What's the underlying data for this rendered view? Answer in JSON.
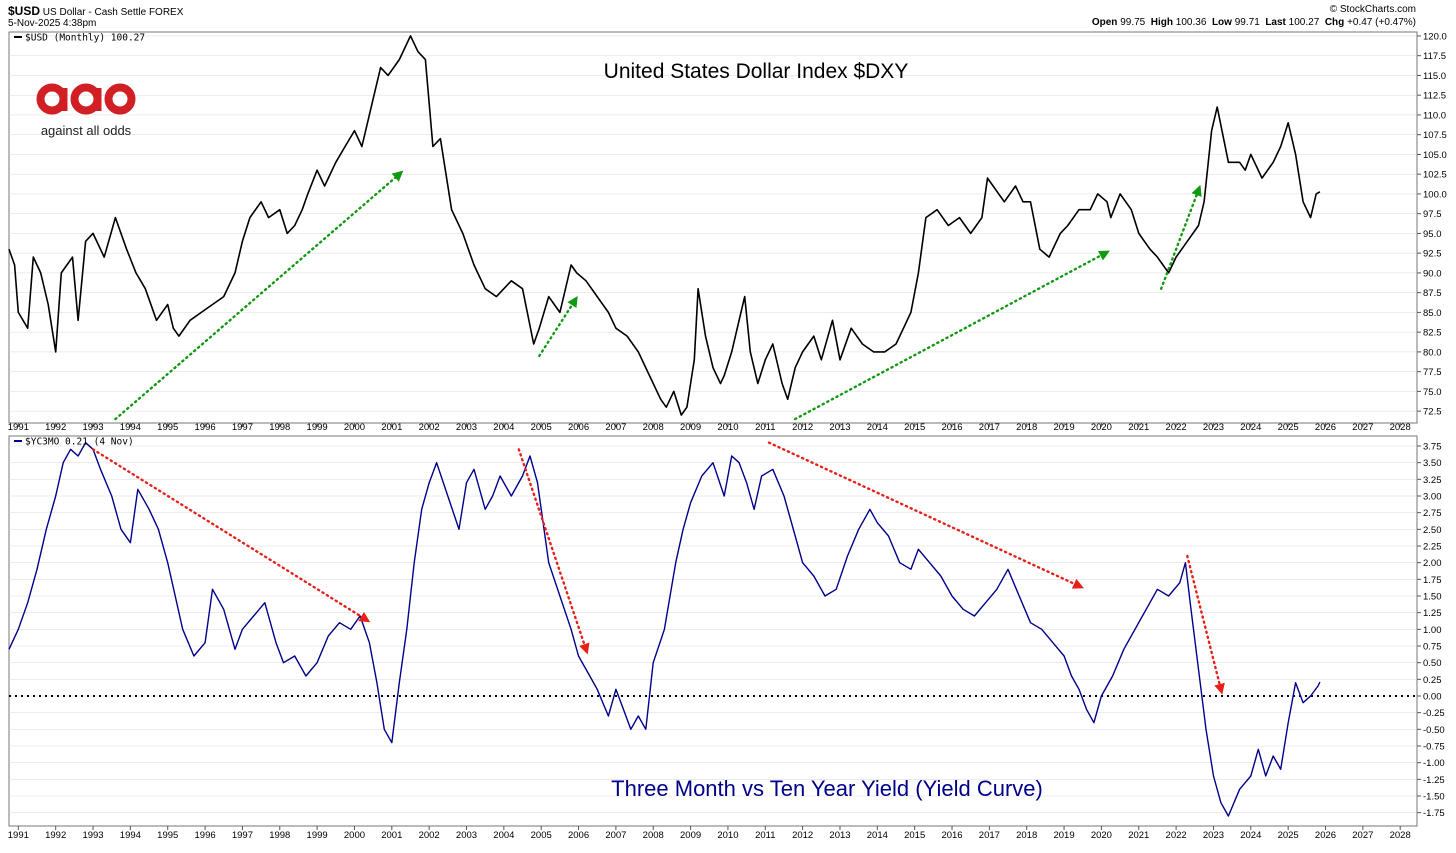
{
  "header": {
    "symbol": "$USD",
    "name": "US Dollar - Cash Settle",
    "exchange": "FOREX",
    "date": "5-Nov-2025 4:38pm",
    "source": "© StockCharts.com",
    "ohlc": [
      {
        "label": "Open",
        "value": "99.75"
      },
      {
        "label": "High",
        "value": "100.36"
      },
      {
        "label": "Low",
        "value": "99.71"
      },
      {
        "label": "Last",
        "value": "100.27"
      },
      {
        "label": "Chg",
        "value": "+0.47 (+0.47%)"
      }
    ]
  },
  "logo": {
    "mark": "aao",
    "tagline": "against all odds"
  },
  "colors": {
    "usd": "#000000",
    "yield": "#00008b",
    "up_arrow": "#119911",
    "down_arrow": "#e8201a",
    "logo": "#d11f26",
    "grid": "#d9d9d9"
  },
  "chart_data": [
    {
      "type": "line",
      "legend": "$USD (Monthly) 100.27",
      "title": "United States Dollar Index $DXY",
      "ylim": [
        71,
        120.5
      ],
      "yticks": [
        "72.5",
        "75.0",
        "77.5",
        "80.0",
        "82.5",
        "85.0",
        "87.5",
        "90.0",
        "92.5",
        "95.0",
        "97.5",
        "100.0",
        "102.5",
        "105.0",
        "107.5",
        "110.0",
        "112.5",
        "115.0",
        "117.5",
        "120.0"
      ],
      "xlim": [
        1990.75,
        2028.45
      ],
      "xticks": [
        "1991",
        "1992",
        "1993",
        "1994",
        "1995",
        "1996",
        "1997",
        "1998",
        "1999",
        "2000",
        "2001",
        "2002",
        "2003",
        "2004",
        "2005",
        "2006",
        "2007",
        "2008",
        "2009",
        "2010",
        "2011",
        "2012",
        "2013",
        "2014",
        "2015",
        "2016",
        "2017",
        "2018",
        "2019",
        "2020",
        "2021",
        "2022",
        "2023",
        "2024",
        "2025",
        "2026",
        "2027",
        "2028"
      ],
      "x": [
        1990.75,
        1990.9,
        1991.0,
        1991.25,
        1991.4,
        1991.6,
        1991.8,
        1992.0,
        1992.15,
        1992.45,
        1992.6,
        1992.8,
        1993.0,
        1993.3,
        1993.6,
        1993.9,
        1994.15,
        1994.4,
        1994.7,
        1995.0,
        1995.15,
        1995.3,
        1995.6,
        1995.9,
        1996.2,
        1996.5,
        1996.8,
        1997.0,
        1997.2,
        1997.5,
        1997.7,
        1998.0,
        1998.2,
        1998.4,
        1998.6,
        1998.75,
        1999.0,
        1999.2,
        1999.5,
        1999.75,
        2000.0,
        2000.2,
        2000.5,
        2000.7,
        2000.9,
        2001.2,
        2001.5,
        2001.7,
        2001.9,
        2002.1,
        2002.3,
        2002.6,
        2002.9,
        2003.2,
        2003.5,
        2003.8,
        2004.0,
        2004.2,
        2004.5,
        2004.8,
        2004.95,
        2005.2,
        2005.5,
        2005.8,
        2005.95,
        2006.2,
        2006.5,
        2006.8,
        2007.0,
        2007.3,
        2007.6,
        2007.9,
        2008.2,
        2008.35,
        2008.55,
        2008.75,
        2008.9,
        2009.1,
        2009.2,
        2009.4,
        2009.6,
        2009.8,
        2009.9,
        2010.1,
        2010.3,
        2010.45,
        2010.6,
        2010.8,
        2011.0,
        2011.2,
        2011.45,
        2011.6,
        2011.8,
        2012.0,
        2012.3,
        2012.5,
        2012.8,
        2013.0,
        2013.3,
        2013.6,
        2013.9,
        2014.2,
        2014.5,
        2014.7,
        2014.9,
        2015.1,
        2015.3,
        2015.6,
        2015.9,
        2016.2,
        2016.5,
        2016.8,
        2016.95,
        2017.1,
        2017.4,
        2017.7,
        2017.9,
        2018.1,
        2018.35,
        2018.6,
        2018.9,
        2019.1,
        2019.4,
        2019.7,
        2019.9,
        2020.15,
        2020.25,
        2020.5,
        2020.8,
        2021.0,
        2021.3,
        2021.5,
        2021.8,
        2022.0,
        2022.3,
        2022.6,
        2022.75,
        2022.95,
        2023.1,
        2023.4,
        2023.7,
        2023.85,
        2024.0,
        2024.3,
        2024.6,
        2024.8,
        2025.0,
        2025.2,
        2025.4,
        2025.6,
        2025.75,
        2025.85
      ],
      "values": [
        93,
        91,
        85,
        83,
        92,
        90,
        86,
        80,
        90,
        92,
        84,
        94,
        95,
        92,
        97,
        93,
        90,
        88,
        84,
        86,
        83,
        82,
        84,
        85,
        86,
        87,
        90,
        94,
        97,
        99,
        97,
        98,
        95,
        96,
        98,
        100,
        103,
        101,
        104,
        106,
        108,
        106,
        112,
        116,
        115,
        117,
        120,
        118,
        117,
        106,
        107,
        98,
        95,
        91,
        88,
        87,
        88,
        89,
        88,
        81,
        83,
        87,
        85,
        91,
        90,
        89,
        87,
        85,
        83,
        82,
        80,
        77,
        74,
        73,
        75,
        72,
        73,
        79,
        88,
        82,
        78,
        76,
        77,
        80,
        84,
        87,
        80,
        76,
        79,
        81,
        76,
        74,
        78,
        80,
        82,
        79,
        84,
        79,
        83,
        81,
        80,
        80,
        81,
        83,
        85,
        90,
        97,
        98,
        96,
        97,
        95,
        97,
        102,
        101,
        99,
        101,
        99,
        99,
        93,
        92,
        95,
        96,
        98,
        98,
        100,
        99,
        97,
        100,
        98,
        95,
        93,
        92,
        90,
        92,
        94,
        96,
        99,
        108,
        111,
        104,
        104,
        103,
        105,
        102,
        104,
        106,
        109,
        105,
        99,
        97,
        100,
        100.27
      ]
    },
    {
      "type": "line",
      "legend": "$YC3MO 0.21 (4 Nov)",
      "title": "Three Month vs Ten Year Yield (Yield Curve)",
      "ylim": [
        -1.95,
        3.9
      ],
      "yticks": [
        "3.75",
        "3.50",
        "3.25",
        "3.00",
        "2.75",
        "2.50",
        "2.25",
        "2.00",
        "1.75",
        "1.50",
        "1.25",
        "1.00",
        "0.75",
        "0.50",
        "0.25",
        "0.00",
        "-0.25",
        "-0.50",
        "-0.75",
        "-1.00",
        "-1.25",
        "-1.50",
        "-1.75"
      ],
      "xlim": [
        1990.75,
        2028.45
      ],
      "xticks": [
        "1991",
        "1992",
        "1993",
        "1994",
        "1995",
        "1996",
        "1997",
        "1998",
        "1999",
        "2000",
        "2001",
        "2002",
        "2003",
        "2004",
        "2005",
        "2006",
        "2007",
        "2008",
        "2009",
        "2010",
        "2011",
        "2012",
        "2013",
        "2014",
        "2015",
        "2016",
        "2017",
        "2018",
        "2019",
        "2020",
        "2021",
        "2022",
        "2023",
        "2024",
        "2025",
        "2026",
        "2027",
        "2028"
      ],
      "x": [
        1990.75,
        1991.0,
        1991.25,
        1991.5,
        1991.75,
        1992.0,
        1992.2,
        1992.4,
        1992.6,
        1992.8,
        1993.0,
        1993.2,
        1993.5,
        1993.75,
        1994.0,
        1994.2,
        1994.5,
        1994.75,
        1995.0,
        1995.2,
        1995.4,
        1995.7,
        1996.0,
        1996.2,
        1996.5,
        1996.8,
        1997.0,
        1997.3,
        1997.6,
        1997.9,
        1998.1,
        1998.4,
        1998.7,
        1999.0,
        1999.3,
        1999.6,
        1999.9,
        2000.15,
        2000.4,
        2000.6,
        2000.8,
        2001.0,
        2001.2,
        2001.4,
        2001.6,
        2001.8,
        2002.0,
        2002.2,
        2002.5,
        2002.8,
        2003.0,
        2003.2,
        2003.5,
        2003.7,
        2003.9,
        2004.2,
        2004.5,
        2004.7,
        2004.9,
        2005.2,
        2005.5,
        2005.8,
        2006.0,
        2006.3,
        2006.5,
        2006.8,
        2007.0,
        2007.2,
        2007.4,
        2007.6,
        2007.8,
        2008.0,
        2008.3,
        2008.6,
        2008.8,
        2009.0,
        2009.3,
        2009.6,
        2009.9,
        2010.1,
        2010.3,
        2010.5,
        2010.7,
        2010.9,
        2011.2,
        2011.5,
        2011.8,
        2012.0,
        2012.3,
        2012.6,
        2012.9,
        2013.2,
        2013.5,
        2013.8,
        2014.0,
        2014.3,
        2014.6,
        2014.9,
        2015.1,
        2015.4,
        2015.7,
        2016.0,
        2016.3,
        2016.6,
        2016.9,
        2017.2,
        2017.5,
        2017.8,
        2018.1,
        2018.4,
        2018.7,
        2019.0,
        2019.2,
        2019.4,
        2019.6,
        2019.8,
        2020.0,
        2020.3,
        2020.6,
        2020.9,
        2021.2,
        2021.5,
        2021.8,
        2022.1,
        2022.25,
        2022.4,
        2022.6,
        2022.8,
        2023.0,
        2023.2,
        2023.4,
        2023.7,
        2024.0,
        2024.2,
        2024.4,
        2024.6,
        2024.8,
        2025.0,
        2025.2,
        2025.4,
        2025.6,
        2025.8,
        2025.85
      ],
      "values": [
        0.7,
        1.0,
        1.4,
        1.9,
        2.5,
        3.0,
        3.5,
        3.7,
        3.6,
        3.8,
        3.7,
        3.4,
        3.0,
        2.5,
        2.3,
        3.1,
        2.8,
        2.5,
        2.0,
        1.5,
        1.0,
        0.6,
        0.8,
        1.6,
        1.3,
        0.7,
        1.0,
        1.2,
        1.4,
        0.8,
        0.5,
        0.6,
        0.3,
        0.5,
        0.9,
        1.1,
        1.0,
        1.2,
        0.8,
        0.2,
        -0.5,
        -0.7,
        0.2,
        1.0,
        2.0,
        2.8,
        3.2,
        3.5,
        3.0,
        2.5,
        3.2,
        3.4,
        2.8,
        3.0,
        3.3,
        3.0,
        3.3,
        3.6,
        3.2,
        2.0,
        1.5,
        1.0,
        0.6,
        0.3,
        0.1,
        -0.3,
        0.1,
        -0.2,
        -0.5,
        -0.3,
        -0.5,
        0.5,
        1.0,
        2.0,
        2.5,
        2.9,
        3.3,
        3.5,
        3.0,
        3.6,
        3.5,
        3.2,
        2.8,
        3.3,
        3.4,
        3.0,
        2.4,
        2.0,
        1.8,
        1.5,
        1.6,
        2.1,
        2.5,
        2.8,
        2.6,
        2.4,
        2.0,
        1.9,
        2.2,
        2.0,
        1.8,
        1.5,
        1.3,
        1.2,
        1.4,
        1.6,
        1.9,
        1.5,
        1.1,
        1.0,
        0.8,
        0.6,
        0.3,
        0.1,
        -0.2,
        -0.4,
        0.0,
        0.3,
        0.7,
        1.0,
        1.3,
        1.6,
        1.5,
        1.7,
        2.0,
        1.3,
        0.4,
        -0.5,
        -1.2,
        -1.6,
        -1.8,
        -1.4,
        -1.2,
        -0.8,
        -1.2,
        -0.9,
        -1.1,
        -0.4,
        0.2,
        -0.1,
        0.0,
        0.15,
        0.21
      ],
      "zero_line": 0
    }
  ]
}
